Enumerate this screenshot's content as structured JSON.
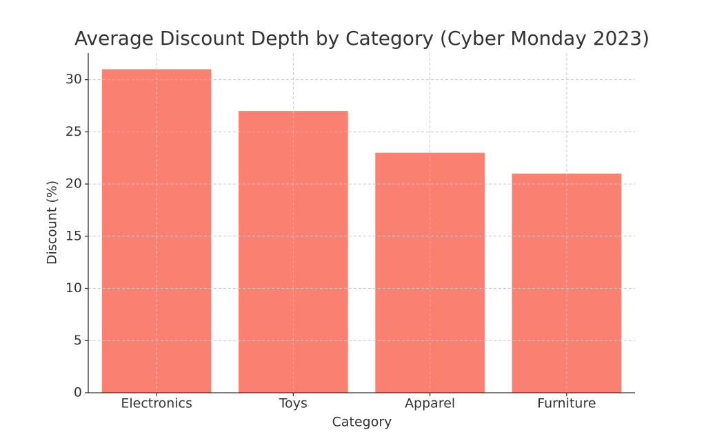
{
  "chart_data": {
    "type": "bar",
    "title": "Average Discount Depth by Category (Cyber Monday 2023)",
    "x_label": "Category",
    "y_label": "Discount (%)",
    "categories": [
      "Electronics",
      "Toys",
      "Apparel",
      "Furniture"
    ],
    "values": [
      31,
      27,
      23,
      21
    ],
    "color": "#fa8072",
    "ylim": [
      0,
      32.55
    ],
    "yticks": [
      0,
      5,
      10,
      15,
      20,
      25,
      30
    ],
    "grid": true
  }
}
